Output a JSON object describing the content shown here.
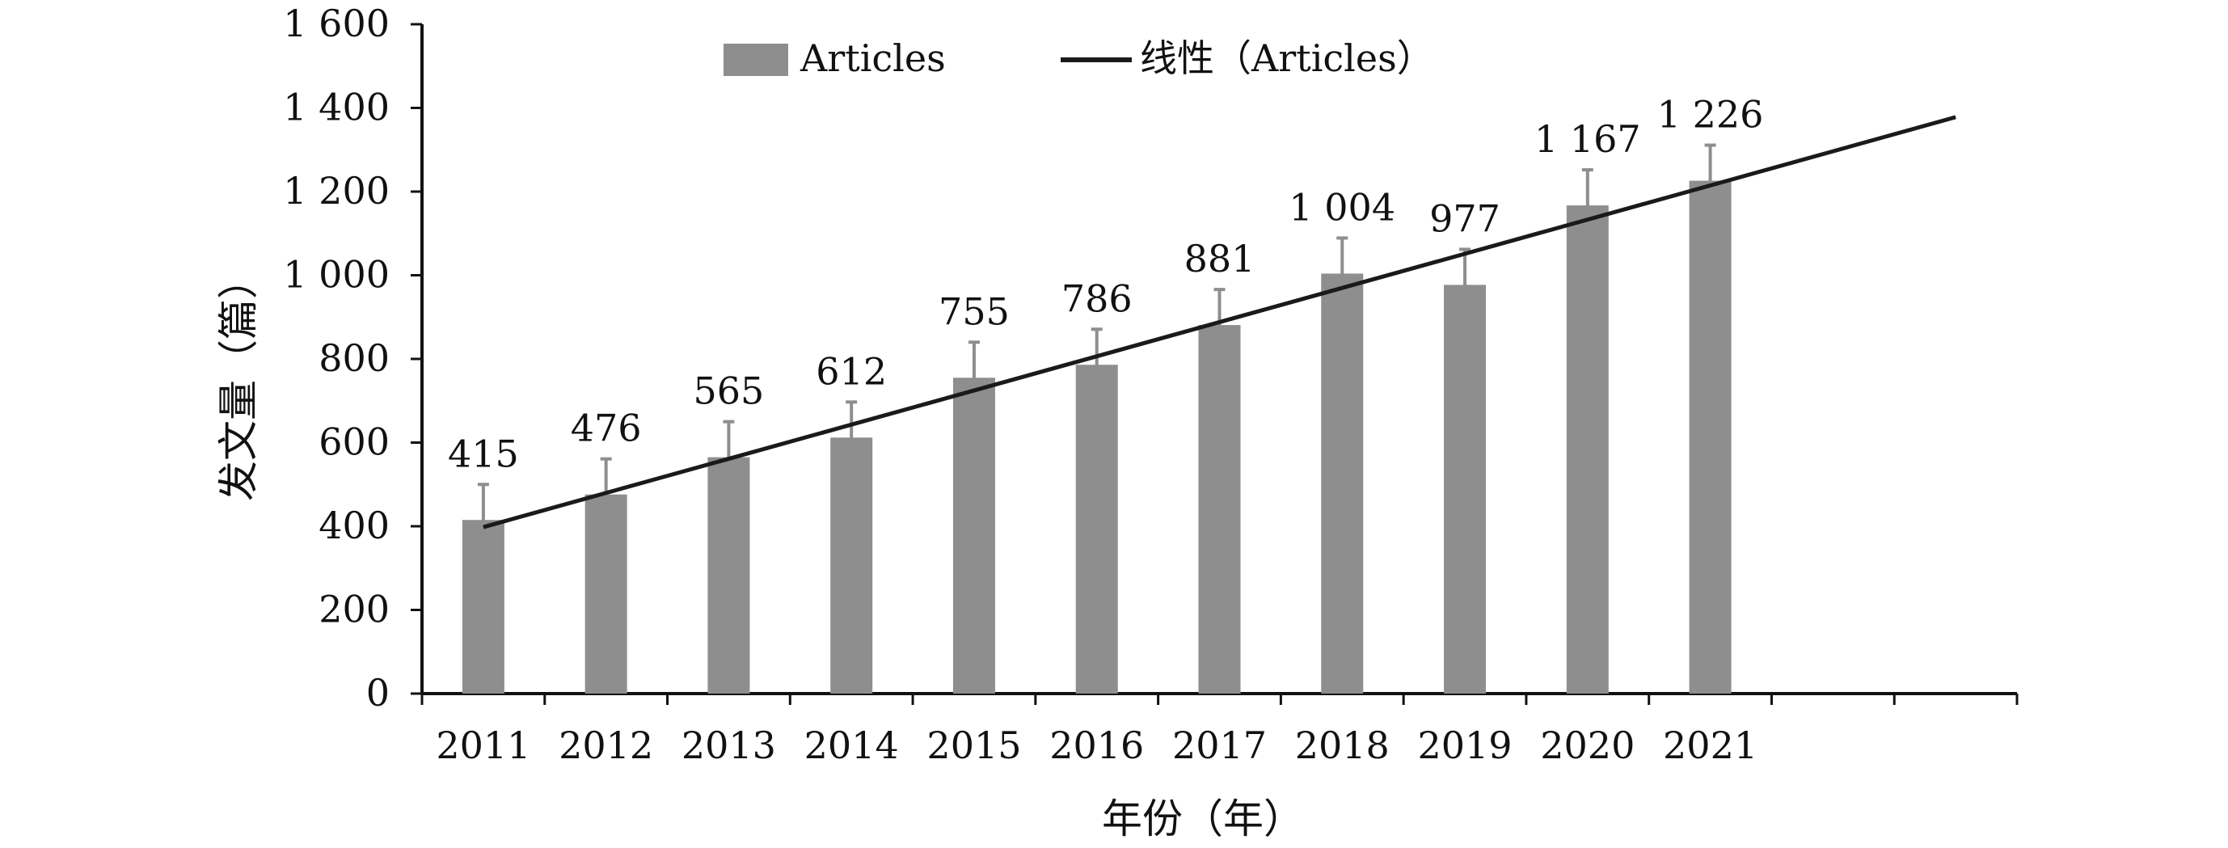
{
  "chart_data": {
    "type": "bar",
    "xlabel": "年份（年）",
    "ylabel": "发文量（篇）",
    "categories": [
      "2011",
      "2012",
      "2013",
      "2014",
      "2015",
      "2016",
      "2017",
      "2018",
      "2019",
      "2020",
      "2021"
    ],
    "series": [
      {
        "name": "Articles",
        "values": [
          415,
          476,
          565,
          612,
          755,
          786,
          881,
          1004,
          977,
          1167,
          1226
        ],
        "value_labels": [
          "415",
          "476",
          "565",
          "612",
          "755",
          "786",
          "881",
          "1 004",
          "977",
          "1 167",
          "1 226"
        ],
        "error": 85,
        "color": "#8e8e8e"
      }
    ],
    "trendline": {
      "name": "线性（Articles）",
      "type": "linear",
      "start": 398,
      "end": 1378,
      "color": "#1a1a1a"
    },
    "ylim": [
      0,
      1600
    ],
    "yticks": [
      0,
      200,
      400,
      600,
      800,
      1000,
      1200,
      1400,
      1600
    ],
    "ytick_labels": [
      "0",
      "200",
      "400",
      "600",
      "800",
      "1 000",
      "1 200",
      "1 400",
      "1 600"
    ],
    "x_extra_slots": 2,
    "legend": {
      "position": "top"
    },
    "grid": false
  }
}
